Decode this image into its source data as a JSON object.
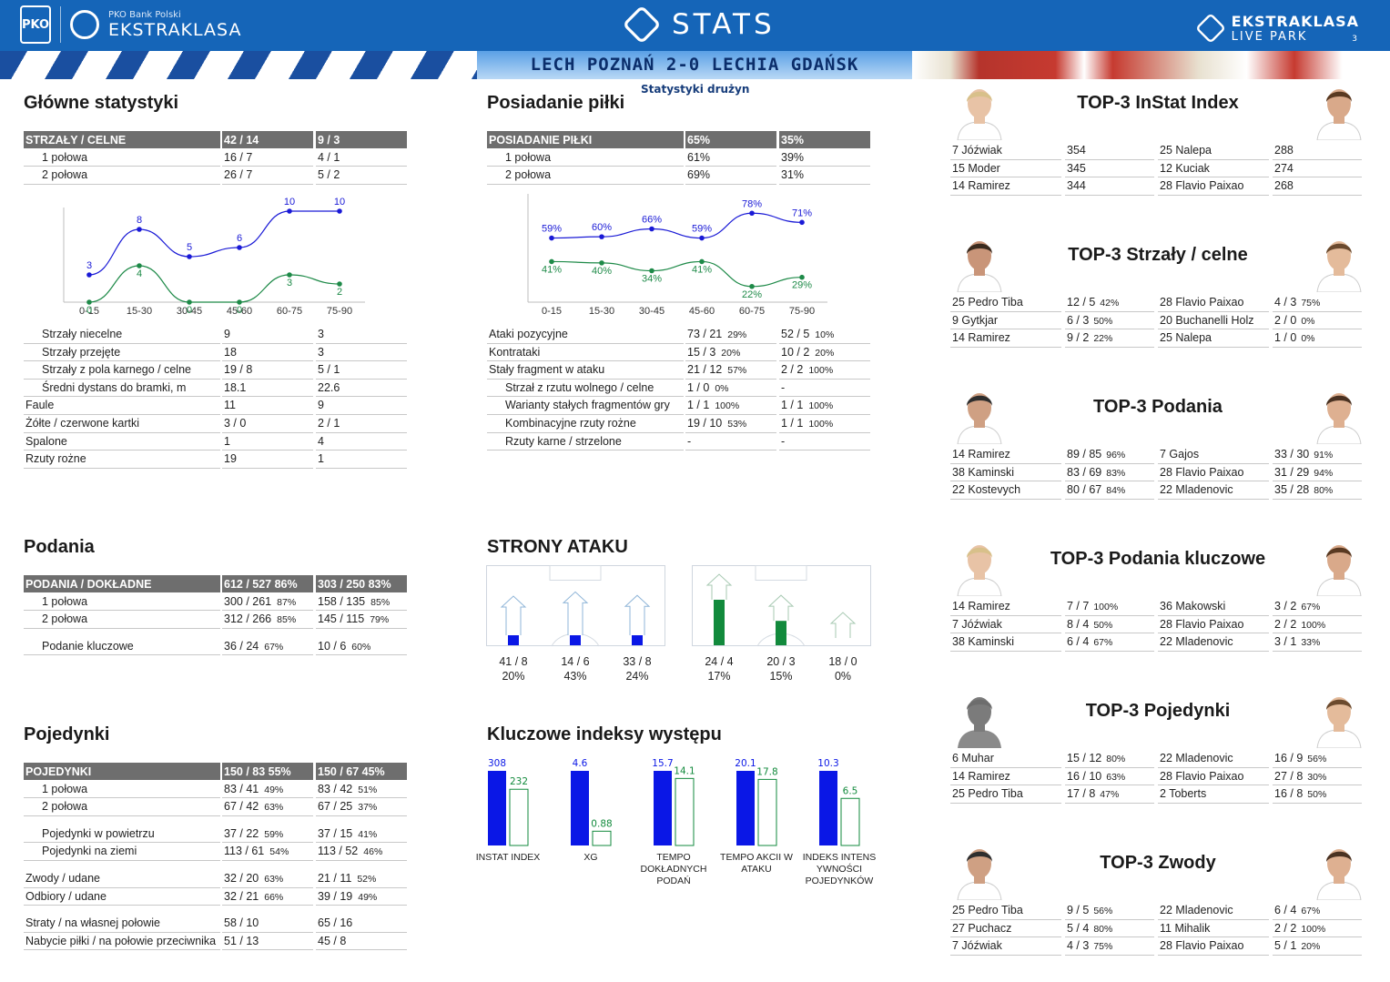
{
  "header": {
    "pko_small": "PKO Bank Polski",
    "pko_big": "EKSTRAKLASA",
    "pko_logo": "PKO",
    "stats_title": "STATS",
    "right_brand_1": "EKSTRAKLASA",
    "right_brand_2": "LIVE PARK",
    "page_number": "3",
    "match": "LECH POZNAŃ 2-0 LECHIA GDAŃSK",
    "subtitle": "Statystyki drużyn"
  },
  "glowne": {
    "title": "Główne statystyki",
    "header": [
      "STRZAŁY / CELNE",
      "42 / 14",
      "9 / 3"
    ],
    "rows": [
      {
        "label": "1 połowa",
        "indent": true,
        "a": "16 / 7",
        "b": "4 / 1"
      },
      {
        "label": "2 połowa",
        "indent": true,
        "a": "26 / 7",
        "b": "5 / 2"
      }
    ],
    "rows2": [
      {
        "label": "Strzały niecelne",
        "indent": true,
        "a": "9",
        "b": "3"
      },
      {
        "label": "Strzały przejęte",
        "indent": true,
        "a": "18",
        "b": "3"
      },
      {
        "label": "Strzały z pola karnego / celne",
        "indent": true,
        "a": "19 / 8",
        "b": "5 / 1"
      },
      {
        "label": "Średni dystans do bramki, m",
        "indent": true,
        "a": "18.1",
        "b": "22.6"
      },
      {
        "label": "Faule",
        "indent": false,
        "a": "11",
        "b": "9"
      },
      {
        "label": "Żółte / czerwone kartki",
        "indent": false,
        "a": "3 / 0",
        "b": "2 / 1"
      },
      {
        "label": "Spalone",
        "indent": false,
        "a": "1",
        "b": "4"
      },
      {
        "label": "Rzuty rożne",
        "indent": false,
        "a": "19",
        "b": "1"
      }
    ]
  },
  "posiadanie": {
    "title": "Posiadanie piłki",
    "header": [
      "POSIADANIE PIŁKI",
      "65%",
      "35%"
    ],
    "rows": [
      {
        "label": "1 połowa",
        "indent": true,
        "a": "61%",
        "b": "39%"
      },
      {
        "label": "2 połowa",
        "indent": true,
        "a": "69%",
        "b": "31%"
      }
    ],
    "rows2": [
      {
        "label": "Ataki pozycyjne",
        "indent": false,
        "a": "73 / 21",
        "ap": "29%",
        "b": "52 / 5",
        "bp": "10%"
      },
      {
        "label": "Kontrataki",
        "indent": false,
        "a": "15 / 3",
        "ap": "20%",
        "b": "10 / 2",
        "bp": "20%"
      },
      {
        "label": "Stały fragment w ataku",
        "indent": false,
        "a": "21 / 12",
        "ap": "57%",
        "b": "2 / 2",
        "bp": "100%"
      },
      {
        "label": "Strzał z rzutu wolnego / celne",
        "indent": true,
        "a": "1 / 0",
        "ap": "0%",
        "b": "-",
        "bp": ""
      },
      {
        "label": "Warianty stałych fragmentów gry",
        "indent": true,
        "a": "1 / 1",
        "ap": "100%",
        "b": "1 / 1",
        "bp": "100%"
      },
      {
        "label": "Kombinacyjne rzuty rożne",
        "indent": true,
        "a": "19 / 10",
        "ap": "53%",
        "b": "1 / 1",
        "bp": "100%"
      },
      {
        "label": "Rzuty karne / strzelone",
        "indent": true,
        "a": "-",
        "ap": "",
        "b": "-",
        "bp": ""
      }
    ]
  },
  "podania": {
    "title": "Podania",
    "header": [
      "PODANIA / DOKŁADNE",
      "612 / 527 86%",
      "303 / 250 83%"
    ],
    "rows": [
      {
        "label": "1 połowa",
        "indent": true,
        "a": "300 / 261",
        "ap": "87%",
        "b": "158 / 135",
        "bp": "85%"
      },
      {
        "label": "2 połowa",
        "indent": true,
        "a": "312 / 266",
        "ap": "85%",
        "b": "145 / 115",
        "bp": "79%"
      }
    ],
    "rows2": [
      {
        "label": "Podanie kluczowe",
        "indent": true,
        "a": "36 / 24",
        "ap": "67%",
        "b": "10 / 6",
        "bp": "60%"
      }
    ]
  },
  "pojedynki": {
    "title": "Pojedynki",
    "header": [
      "POJEDYNKI",
      "150 / 83 55%",
      "150 / 67 45%"
    ],
    "groups": [
      [
        {
          "label": "1 połowa",
          "indent": true,
          "a": "83 / 41",
          "ap": "49%",
          "b": "83 / 42",
          "bp": "51%"
        },
        {
          "label": "2 połowa",
          "indent": true,
          "a": "67 / 42",
          "ap": "63%",
          "b": "67 / 25",
          "bp": "37%"
        }
      ],
      [
        {
          "label": "Pojedynki w powietrzu",
          "indent": true,
          "a": "37 / 22",
          "ap": "59%",
          "b": "37 / 15",
          "bp": "41%"
        },
        {
          "label": "Pojedynki na ziemi",
          "indent": true,
          "a": "113 / 61",
          "ap": "54%",
          "b": "113 / 52",
          "bp": "46%"
        }
      ],
      [
        {
          "label": "Zwody / udane",
          "indent": false,
          "a": "32 / 20",
          "ap": "63%",
          "b": "21 / 11",
          "bp": "52%"
        },
        {
          "label": "Odbiory / udane",
          "indent": false,
          "a": "32 / 21",
          "ap": "66%",
          "b": "39 / 19",
          "bp": "49%"
        }
      ],
      [
        {
          "label": "Straty / na własnej połowie",
          "indent": false,
          "a": "58 / 10",
          "ap": "",
          "b": "65 / 16",
          "bp": ""
        },
        {
          "label": "Nabycie piłki / na połowie przeciwnika",
          "indent": false,
          "a": "51 / 13",
          "ap": "",
          "b": "45 / 8",
          "bp": ""
        }
      ]
    ]
  },
  "strony": {
    "title": "STRONY ATAKU",
    "home": [
      {
        "value": "41 / 8",
        "pct": "20%",
        "level": 0.2
      },
      {
        "value": "14 / 6",
        "pct": "43%",
        "level": 0.43
      },
      {
        "value": "33 / 8",
        "pct": "24%",
        "level": 0.24
      }
    ],
    "away": [
      {
        "value": "24 / 4",
        "pct": "17%",
        "level": 1.0
      },
      {
        "value": "20 / 3",
        "pct": "15%",
        "level": 0.45
      },
      {
        "value": "18 / 0",
        "pct": "0%",
        "level": 0.0
      }
    ],
    "home_color": "#0a17e6",
    "away_color": "#128a3c"
  },
  "kluczowe": {
    "title": "Kluczowe indeksy występu",
    "items": [
      {
        "label": "INSTAT INDEX",
        "a": 308,
        "b": 232,
        "al": "308",
        "bl": "232"
      },
      {
        "label": "XG",
        "a": 4.6,
        "b": 0.88,
        "al": "4.6",
        "bl": "0.88"
      },
      {
        "label": "TEMPO DOKŁADNYCH PODAŃ",
        "a": 15.7,
        "b": 14.1,
        "al": "15.7",
        "bl": "14.1"
      },
      {
        "label": "TEMPO AKCII W ATAKU",
        "a": 20.1,
        "b": 17.8,
        "al": "20.1",
        "bl": "17.8"
      },
      {
        "label": "INDEKS INTENS YWNOŚCI POJEDYNKÓW",
        "a": 10.3,
        "b": 6.5,
        "al": "10.3",
        "bl": "6.5"
      }
    ]
  },
  "chart_data": [
    {
      "type": "line",
      "title": "",
      "categories": [
        "0-15",
        "15-30",
        "30-45",
        "45-60",
        "60-75",
        "75-90"
      ],
      "series": [
        {
          "values": [
            3,
            8,
            5,
            6,
            10,
            10
          ],
          "color": "#1a1ad6"
        },
        {
          "values": [
            0,
            4,
            0,
            0,
            3,
            2
          ],
          "color": "#1e8a48"
        }
      ],
      "ylim": [
        0,
        10
      ],
      "grid": false
    },
    {
      "type": "line",
      "title": "",
      "categories": [
        "0-15",
        "15-30",
        "30-45",
        "45-60",
        "60-75",
        "75-90"
      ],
      "series": [
        {
          "values": [
            59,
            60,
            66,
            59,
            78,
            71
          ],
          "labels": [
            "59%",
            "60%",
            "66%",
            "59%",
            "78%",
            "71%"
          ],
          "color": "#1a1ad6"
        },
        {
          "values": [
            41,
            40,
            34,
            41,
            22,
            29
          ],
          "labels": [
            "41%",
            "40%",
            "34%",
            "41%",
            "22%",
            "29%"
          ],
          "color": "#1e8a48"
        }
      ],
      "ylim": [
        10,
        90
      ],
      "grid": false
    }
  ],
  "top3": [
    {
      "title": "TOP-3 InStat Index",
      "left": [
        [
          "7  Jóźwiak",
          "354",
          ""
        ],
        [
          "15 Moder",
          "345",
          ""
        ],
        [
          "14 Ramirez",
          "344",
          ""
        ]
      ],
      "right": [
        [
          "25 Nalepa",
          "288",
          ""
        ],
        [
          "12 Kuciak",
          "274",
          ""
        ],
        [
          "28 Flavio Paixao",
          "268",
          ""
        ]
      ]
    },
    {
      "title": "TOP-3 Strzały / celne",
      "left": [
        [
          "25 Pedro Tiba",
          "12 / 5",
          "42%"
        ],
        [
          "9  Gytkjar",
          "6 / 3",
          "50%"
        ],
        [
          "14 Ramirez",
          "9 / 2",
          "22%"
        ]
      ],
      "right": [
        [
          "28 Flavio Paixao",
          "4 / 3",
          "75%"
        ],
        [
          "20 Buchanelli Holz",
          "2 / 0",
          "0%"
        ],
        [
          "25 Nalepa",
          "1 / 0",
          "0%"
        ]
      ]
    },
    {
      "title": "TOP-3 Podania",
      "left": [
        [
          "14 Ramirez",
          "89 / 85",
          "96%"
        ],
        [
          "38 Kaminski",
          "83 / 69",
          "83%"
        ],
        [
          "22 Kostevych",
          "80 / 67",
          "84%"
        ]
      ],
      "right": [
        [
          "7  Gajos",
          "33 / 30",
          "91%"
        ],
        [
          "28 Flavio Paixao",
          "31 / 29",
          "94%"
        ],
        [
          "22 Mladenovic",
          "35 / 28",
          "80%"
        ]
      ]
    },
    {
      "title": "TOP-3 Podania kluczowe",
      "left": [
        [
          "14 Ramirez",
          "7 / 7",
          "100%"
        ],
        [
          "7  Jóźwiak",
          "8 / 4",
          "50%"
        ],
        [
          "38 Kaminski",
          "6 / 4",
          "67%"
        ]
      ],
      "right": [
        [
          "36 Makowski",
          "3 / 2",
          "67%"
        ],
        [
          "28 Flavio Paixao",
          "2 / 2",
          "100%"
        ],
        [
          "22 Mladenovic",
          "3 / 1",
          "33%"
        ]
      ]
    },
    {
      "title": "TOP-3 Pojedynki",
      "left": [
        [
          "6  Muhar",
          "15 / 12",
          "80%"
        ],
        [
          "14 Ramirez",
          "16 / 10",
          "63%"
        ],
        [
          "25 Pedro Tiba",
          "17 / 8",
          "47%"
        ]
      ],
      "right": [
        [
          "22 Mladenovic",
          "16 / 9",
          "56%"
        ],
        [
          "28 Flavio Paixao",
          "27 / 8",
          "30%"
        ],
        [
          "2  Toberts",
          "16 / 8",
          "50%"
        ]
      ]
    },
    {
      "title": "TOP-3 Zwody",
      "left": [
        [
          "25 Pedro Tiba",
          "9 / 5",
          "56%"
        ],
        [
          "27 Puchacz",
          "5 / 4",
          "80%"
        ],
        [
          "7  Jóźwiak",
          "4 / 3",
          "75%"
        ]
      ],
      "right": [
        [
          "22 Mladenovic",
          "6 / 4",
          "67%"
        ],
        [
          "11 Mihalik",
          "2 / 2",
          "100%"
        ],
        [
          "28 Flavio Paixao",
          "5 / 1",
          "20%"
        ]
      ]
    }
  ]
}
